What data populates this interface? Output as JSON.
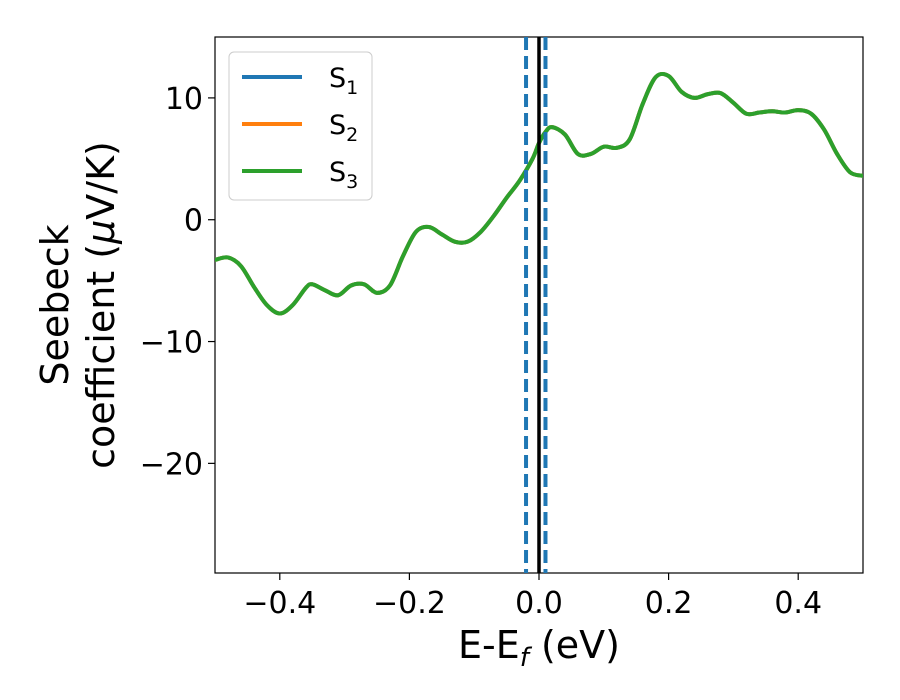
{
  "chart_data": {
    "type": "line",
    "xlabel_main": "E-E",
    "xlabel_sub": "f",
    "xlabel_unit": " (eV)",
    "ylabel_line1": "Seebeck",
    "ylabel_line2": "coefficient  (",
    "ylabel_mu": "μ",
    "ylabel_unit": "V/K)",
    "xlim": [
      -0.5,
      0.5
    ],
    "ylim": [
      -29,
      15
    ],
    "x_ticks": [
      -0.4,
      -0.2,
      0.0,
      0.2,
      0.4
    ],
    "x_tick_labels": [
      "−0.4",
      "−0.2",
      "0.0",
      "0.2",
      "0.4"
    ],
    "y_ticks": [
      10,
      0,
      -10,
      -20
    ],
    "y_tick_labels": [
      "10",
      "0",
      "−10",
      "−20"
    ],
    "grid": false,
    "legend_position": "top-left",
    "series": [
      {
        "name": "S",
        "subscript": "1",
        "color": "#1f77b4",
        "x": [
          -0.5,
          -0.48,
          -0.46,
          -0.44,
          -0.42,
          -0.4,
          -0.38,
          -0.36,
          -0.35,
          -0.33,
          -0.31,
          -0.29,
          -0.27,
          -0.25,
          -0.23,
          -0.21,
          -0.19,
          -0.17,
          -0.15,
          -0.13,
          -0.11,
          -0.09,
          -0.07,
          -0.05,
          -0.03,
          -0.01,
          0.0,
          0.01,
          0.02,
          0.04,
          0.06,
          0.08,
          0.1,
          0.12,
          0.14,
          0.16,
          0.18,
          0.2,
          0.22,
          0.24,
          0.26,
          0.28,
          0.3,
          0.32,
          0.34,
          0.36,
          0.38,
          0.4,
          0.42,
          0.44,
          0.46,
          0.48,
          0.5
        ],
        "y": [
          -3.3,
          -3.1,
          -3.8,
          -5.5,
          -7.0,
          -7.7,
          -7.0,
          -5.6,
          -5.3,
          -5.8,
          -6.2,
          -5.4,
          -5.3,
          -6.0,
          -5.4,
          -3.0,
          -1.0,
          -0.6,
          -1.2,
          -1.8,
          -1.8,
          -1.0,
          0.3,
          1.8,
          3.2,
          5.0,
          6.3,
          7.2,
          7.6,
          7.0,
          5.4,
          5.4,
          6.0,
          5.9,
          6.6,
          9.5,
          11.7,
          11.8,
          10.5,
          10.0,
          10.3,
          10.4,
          9.6,
          8.7,
          8.8,
          8.9,
          8.8,
          9.0,
          8.7,
          7.4,
          5.4,
          3.9,
          3.6
        ]
      },
      {
        "name": "S",
        "subscript": "2",
        "color": "#ff7f0e",
        "x": [
          -0.5,
          -0.48,
          -0.46,
          -0.44,
          -0.42,
          -0.4,
          -0.38,
          -0.36,
          -0.35,
          -0.33,
          -0.31,
          -0.29,
          -0.27,
          -0.25,
          -0.23,
          -0.21,
          -0.19,
          -0.17,
          -0.15,
          -0.13,
          -0.11,
          -0.09,
          -0.07,
          -0.05,
          -0.03,
          -0.01,
          0.0,
          0.01,
          0.02,
          0.04,
          0.06,
          0.08,
          0.1,
          0.12,
          0.14,
          0.16,
          0.18,
          0.2,
          0.22,
          0.24,
          0.26,
          0.28,
          0.3,
          0.32,
          0.34,
          0.36,
          0.38,
          0.4,
          0.42,
          0.44,
          0.46,
          0.48,
          0.5
        ],
        "y": [
          -3.3,
          -3.1,
          -3.8,
          -5.5,
          -7.0,
          -7.7,
          -7.0,
          -5.6,
          -5.3,
          -5.8,
          -6.2,
          -5.4,
          -5.3,
          -6.0,
          -5.4,
          -3.0,
          -1.0,
          -0.6,
          -1.2,
          -1.8,
          -1.8,
          -1.0,
          0.3,
          1.8,
          3.2,
          5.0,
          6.3,
          7.2,
          7.6,
          7.0,
          5.4,
          5.4,
          6.0,
          5.9,
          6.6,
          9.5,
          11.7,
          11.8,
          10.5,
          10.0,
          10.3,
          10.4,
          9.6,
          8.7,
          8.8,
          8.9,
          8.8,
          9.0,
          8.7,
          7.4,
          5.4,
          3.9,
          3.6
        ]
      },
      {
        "name": "S",
        "subscript": "3",
        "color": "#2ca02c",
        "x": [
          -0.5,
          -0.48,
          -0.46,
          -0.44,
          -0.42,
          -0.4,
          -0.38,
          -0.36,
          -0.35,
          -0.33,
          -0.31,
          -0.29,
          -0.27,
          -0.25,
          -0.23,
          -0.21,
          -0.19,
          -0.17,
          -0.15,
          -0.13,
          -0.11,
          -0.09,
          -0.07,
          -0.05,
          -0.03,
          -0.01,
          0.0,
          0.01,
          0.02,
          0.04,
          0.06,
          0.08,
          0.1,
          0.12,
          0.14,
          0.16,
          0.18,
          0.2,
          0.22,
          0.24,
          0.26,
          0.28,
          0.3,
          0.32,
          0.34,
          0.36,
          0.38,
          0.4,
          0.42,
          0.44,
          0.46,
          0.48,
          0.5
        ],
        "y": [
          -3.3,
          -3.1,
          -3.8,
          -5.5,
          -7.0,
          -7.7,
          -7.0,
          -5.6,
          -5.3,
          -5.8,
          -6.2,
          -5.4,
          -5.3,
          -6.0,
          -5.4,
          -3.0,
          -1.0,
          -0.6,
          -1.2,
          -1.8,
          -1.8,
          -1.0,
          0.3,
          1.8,
          3.2,
          5.0,
          6.3,
          7.2,
          7.6,
          7.0,
          5.4,
          5.4,
          6.0,
          5.9,
          6.6,
          9.5,
          11.7,
          11.8,
          10.5,
          10.0,
          10.3,
          10.4,
          9.6,
          8.7,
          8.8,
          8.9,
          8.8,
          9.0,
          8.7,
          7.4,
          5.4,
          3.9,
          3.6
        ]
      }
    ],
    "vertical_lines": [
      {
        "x": -0.02,
        "style": "dashed",
        "color": "#1f77b4"
      },
      {
        "x": 0.0,
        "style": "solid",
        "color": "#000000"
      },
      {
        "x": 0.01,
        "style": "dashed",
        "color": "#1f77b4"
      }
    ]
  }
}
